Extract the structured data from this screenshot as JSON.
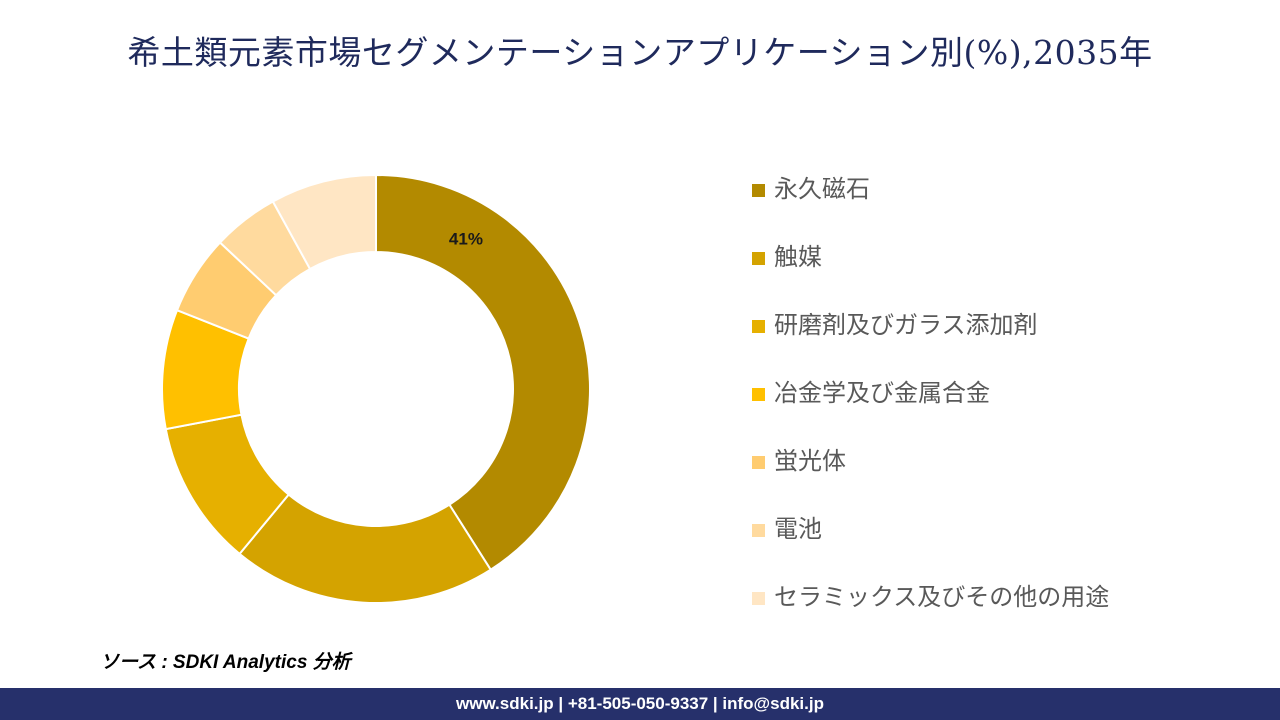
{
  "title": "希土類元素市場セグメンテーションアプリケーション別(%),2035年",
  "chart_data": {
    "type": "pie",
    "variant": "donut",
    "title": "希土類元素市場セグメンテーションアプリケーション別(%),2035年",
    "categories": [
      "永久磁石",
      "触媒",
      "研磨剤及びガラス添加剤",
      "冶金学及び金属合金",
      "蛍光体",
      "電池",
      "セラミックス及びその他の用途"
    ],
    "values": [
      41,
      20,
      11,
      9,
      6,
      5,
      8
    ],
    "colors": [
      "#B38A00",
      "#D4A300",
      "#E6B000",
      "#FFC000",
      "#FFCC70",
      "#FFDA9E",
      "#FFE6C4"
    ],
    "data_labels": [
      {
        "index": 0,
        "text": "41%"
      }
    ],
    "legend_position": "right"
  },
  "source": "ソース : SDKI Analytics 分析",
  "footer": "www.sdki.jp | +81-505-050-9337 | info@sdki.jp"
}
